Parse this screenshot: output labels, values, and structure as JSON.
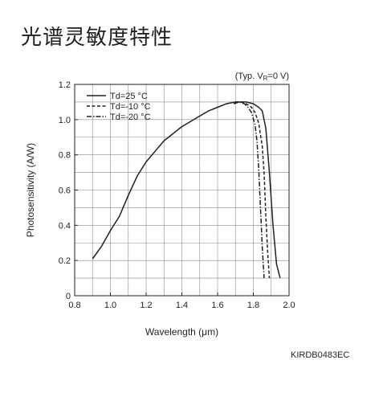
{
  "title": "光谱灵敏度特性",
  "figure_code": "KIRDB0483EC",
  "chart_data": {
    "type": "line",
    "title": "",
    "condition_prefix": "(Typ. V",
    "condition_sub": "R",
    "condition_suffix": "=0 V)",
    "xlabel": "Wavelength (μm)",
    "ylabel": "Photosensitivity (A/W)",
    "xlim": [
      0.8,
      2.0
    ],
    "ylim": [
      0,
      1.2
    ],
    "xticks": [
      "0.8",
      "1.0",
      "1.2",
      "1.4",
      "1.6",
      "1.8",
      "2.0"
    ],
    "yticks": [
      "0",
      "0.2",
      "0.4",
      "0.6",
      "0.8",
      "1.0",
      "1.2"
    ],
    "grid": true,
    "legend_position": "top-left",
    "series": [
      {
        "name": "Td=25 °C",
        "style": "solid",
        "x": [
          0.9,
          0.95,
          1.0,
          1.05,
          1.1,
          1.15,
          1.2,
          1.25,
          1.3,
          1.35,
          1.4,
          1.45,
          1.5,
          1.55,
          1.6,
          1.65,
          1.7,
          1.73,
          1.76,
          1.8,
          1.83,
          1.85,
          1.87,
          1.89,
          1.91,
          1.93,
          1.95
        ],
        "y": [
          0.21,
          0.28,
          0.37,
          0.45,
          0.57,
          0.68,
          0.76,
          0.82,
          0.88,
          0.92,
          0.96,
          0.99,
          1.02,
          1.05,
          1.07,
          1.09,
          1.1,
          1.1,
          1.1,
          1.09,
          1.07,
          1.05,
          0.95,
          0.7,
          0.4,
          0.18,
          0.1
        ]
      },
      {
        "name": "Td=-10 °C",
        "style": "dashed",
        "x": [
          1.7,
          1.73,
          1.76,
          1.79,
          1.81,
          1.83,
          1.85,
          1.86,
          1.87,
          1.88,
          1.89
        ],
        "y": [
          1.1,
          1.1,
          1.09,
          1.07,
          1.04,
          0.98,
          0.85,
          0.7,
          0.45,
          0.25,
          0.1
        ]
      },
      {
        "name": "Td=-20 °C",
        "style": "dashdot",
        "x": [
          1.69,
          1.72,
          1.75,
          1.77,
          1.79,
          1.81,
          1.82,
          1.83,
          1.84,
          1.85,
          1.86
        ],
        "y": [
          1.09,
          1.1,
          1.09,
          1.07,
          1.04,
          0.97,
          0.88,
          0.72,
          0.5,
          0.28,
          0.1
        ]
      }
    ]
  }
}
